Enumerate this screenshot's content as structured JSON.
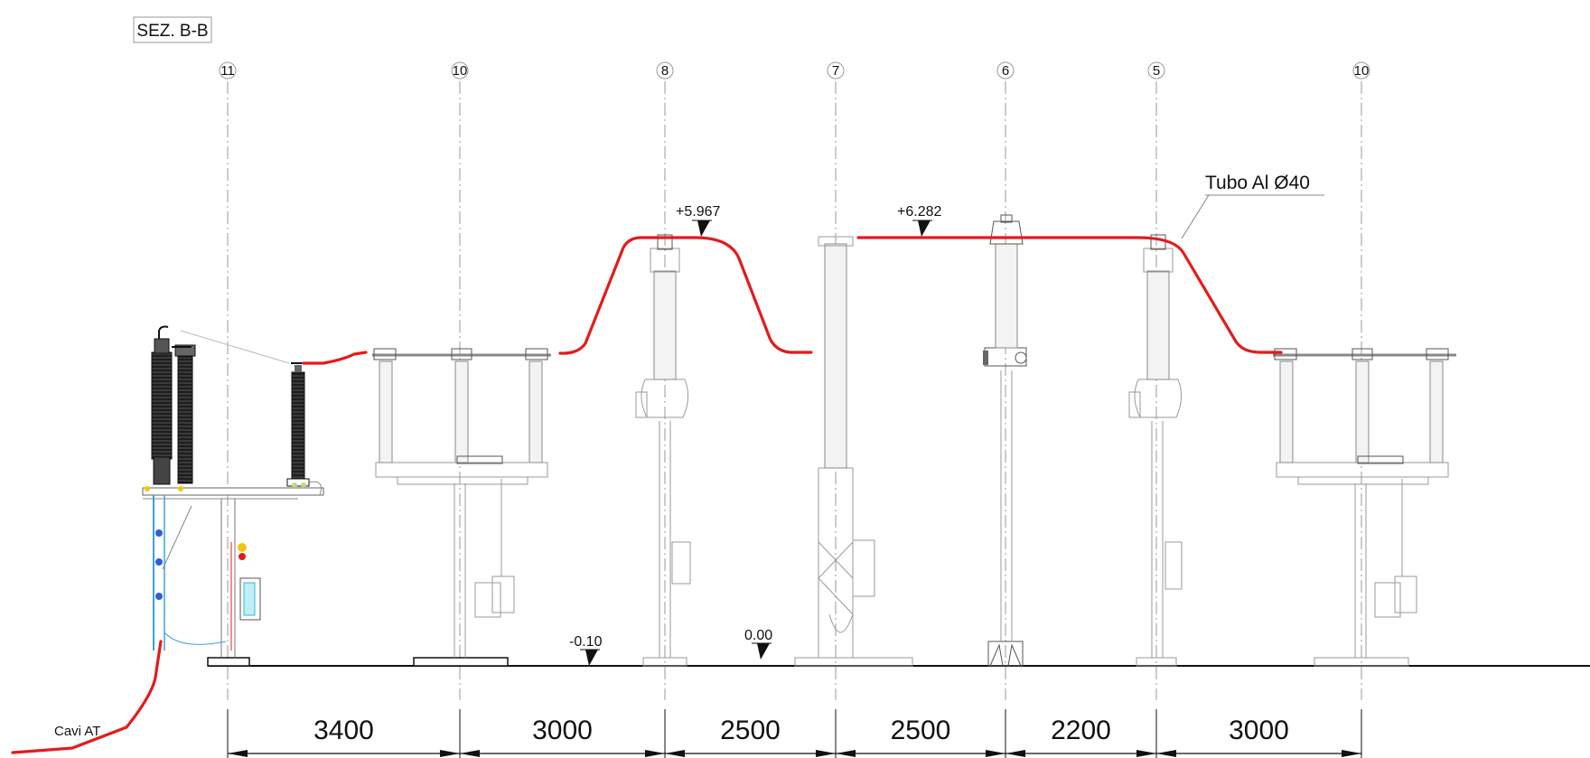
{
  "drawing": {
    "section_title": "SEZ. B-B",
    "axes": [
      {
        "id": "11",
        "label": "11"
      },
      {
        "id": "10a",
        "label": "10"
      },
      {
        "id": "8",
        "label": "8"
      },
      {
        "id": "7",
        "label": "7"
      },
      {
        "id": "6",
        "label": "6"
      },
      {
        "id": "5",
        "label": "5"
      },
      {
        "id": "10b",
        "label": "10"
      }
    ],
    "dimensions": [
      {
        "label": "3400",
        "value": 3400
      },
      {
        "label": "3000",
        "value": 3000
      },
      {
        "label": "2500",
        "value": 2500
      },
      {
        "label": "2500",
        "value": 2500
      },
      {
        "label": "2200",
        "value": 2200
      },
      {
        "label": "3000",
        "value": 3000
      }
    ],
    "elevations": {
      "e1": "+5.967",
      "e2": "+6.282",
      "e3": "-0.10",
      "e4": "0.00"
    },
    "annotations": {
      "conductor_note": "Tubo Al Ø40",
      "cable_note": "Cavi AT"
    },
    "colors": {
      "conductor": "#e41b1b",
      "equipment": "#9a9a9a",
      "ground": "#111111"
    }
  }
}
